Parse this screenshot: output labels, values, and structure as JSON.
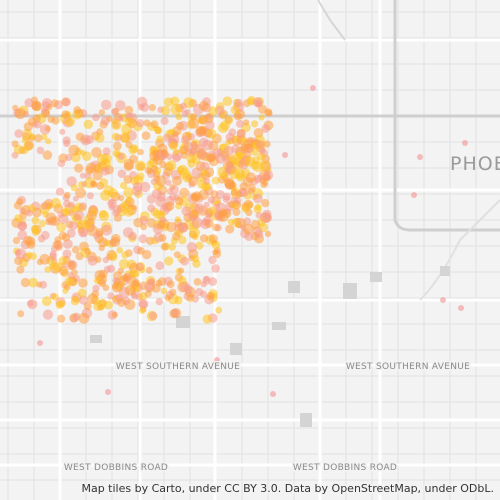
{
  "map": {
    "place_label": "PHOE",
    "street_labels": [
      {
        "text": "WEST SOUTHERN AVENUE"
      },
      {
        "text": "WEST SOUTHERN AVENUE"
      },
      {
        "text": "WEST DOBBINS ROAD"
      },
      {
        "text": "WEST DOBBINS ROAD"
      }
    ],
    "attribution": "Map tiles by Carto, under CC BY 3.0. Data by OpenStreetMap, under ODbL."
  }
}
